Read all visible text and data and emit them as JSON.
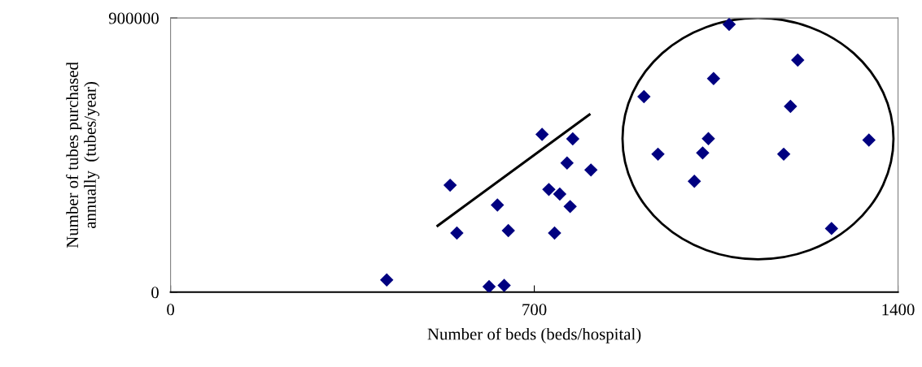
{
  "chart_data": {
    "type": "scatter",
    "xlabel": "Number of beds (beds/hospital)",
    "ylabel": "Number of tubes purchased\nannually  (tubes/year)",
    "xlim": [
      0,
      1400
    ],
    "xticks": [
      0,
      700,
      1400
    ],
    "ylim": [
      0,
      900000
    ],
    "yticks": [
      0,
      900000
    ],
    "grid": false,
    "legend": false,
    "marker": "diamond",
    "series": [
      {
        "color": "#000080",
        "x": [
          416,
          538,
          551,
          629,
          650,
          613,
          642,
          715,
          774,
          763,
          809,
          728,
          749,
          769,
          739,
          1075,
          1207,
          1045,
          911,
          1193,
          1035,
          938,
          1024,
          1180,
          1344,
          1008,
          1272
        ],
        "values": [
          40000,
          351000,
          194000,
          286000,
          202000,
          18000,
          22000,
          518000,
          503000,
          424000,
          401000,
          337000,
          322000,
          281000,
          194000,
          879000,
          762000,
          701000,
          642000,
          610000,
          504000,
          453000,
          457000,
          453000,
          499000,
          364000,
          209000
        ]
      },
      {
        "type": "line",
        "color": "#000000",
        "marker": "none",
        "line_style": "solid",
        "x": [
          514,
          806
        ],
        "values": [
          218000,
          583000
        ]
      }
    ]
  }
}
